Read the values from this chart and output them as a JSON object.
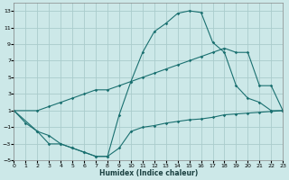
{
  "xlabel": "Humidex (Indice chaleur)",
  "bg_color": "#cce8e8",
  "grid_color": "#aacccc",
  "line_color": "#1a7070",
  "xlim": [
    0,
    23
  ],
  "ylim": [
    -5,
    14
  ],
  "xticks": [
    0,
    1,
    2,
    3,
    4,
    5,
    6,
    7,
    8,
    9,
    10,
    11,
    12,
    13,
    14,
    15,
    16,
    17,
    18,
    19,
    20,
    21,
    22,
    23
  ],
  "yticks": [
    -5,
    -3,
    -1,
    1,
    3,
    5,
    7,
    9,
    11,
    13
  ],
  "line1_x": [
    0,
    1,
    2,
    3,
    4,
    5,
    6,
    7,
    8,
    9,
    10,
    11,
    12,
    13,
    14,
    15,
    16,
    17,
    18,
    19,
    20,
    21,
    22,
    23
  ],
  "line1_y": [
    1,
    -0.5,
    -1.5,
    -3,
    -3,
    -3.5,
    -4,
    -4.5,
    -4.5,
    0.5,
    4.5,
    8,
    10.5,
    11.5,
    12.7,
    13.0,
    12.8,
    9.2,
    8.0,
    4.0,
    2.5,
    2.0,
    1.0,
    1.0
  ],
  "line2_x": [
    0,
    2,
    3,
    4,
    5,
    6,
    7,
    8,
    9,
    10,
    11,
    12,
    13,
    14,
    15,
    16,
    17,
    18,
    19,
    20,
    21,
    22,
    23
  ],
  "line2_y": [
    1,
    1.0,
    1.5,
    2.0,
    2.5,
    3.0,
    3.5,
    3.5,
    4.0,
    4.5,
    5.0,
    5.5,
    6.0,
    6.5,
    7.0,
    7.5,
    8.0,
    8.5,
    8.0,
    8.0,
    4.0,
    4.0,
    1.0
  ],
  "line3_x": [
    0,
    2,
    3,
    4,
    5,
    6,
    7,
    8,
    9,
    10,
    11,
    12,
    13,
    14,
    15,
    16,
    17,
    18,
    19,
    20,
    21,
    22,
    23
  ],
  "line3_y": [
    1,
    -1.5,
    -2.0,
    -3.0,
    -3.5,
    -4.0,
    -4.5,
    -4.5,
    -3.5,
    -1.5,
    -1.0,
    -0.8,
    -0.5,
    -0.3,
    -0.1,
    0.0,
    0.2,
    0.5,
    0.6,
    0.7,
    0.8,
    0.9,
    1.0
  ]
}
